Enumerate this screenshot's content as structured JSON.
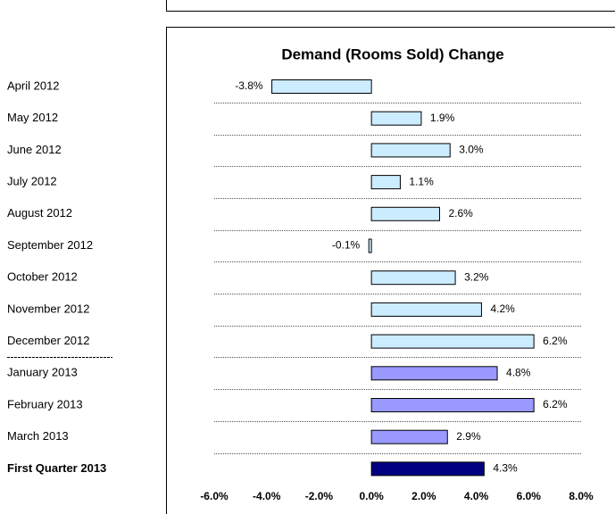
{
  "chart_data": {
    "type": "hbar",
    "title": "Demand (Rooms Sold) Change",
    "categories": [
      "April 2012",
      "May 2012",
      "June 2012",
      "July 2012",
      "August 2012",
      "September 2012",
      "October 2012",
      "November 2012",
      "December 2012",
      "January 2013",
      "February 2013",
      "March 2013",
      "First Quarter 2013"
    ],
    "values": [
      -3.8,
      1.9,
      3.0,
      1.1,
      2.6,
      -0.1,
      3.2,
      4.2,
      6.2,
      4.8,
      6.2,
      2.9,
      4.3
    ],
    "value_labels": [
      "-3.8%",
      "1.9%",
      "3.0%",
      "1.1%",
      "2.6%",
      "-0.1%",
      "3.2%",
      "4.2%",
      "6.2%",
      "4.8%",
      "6.2%",
      "2.9%",
      "4.3%"
    ],
    "colors": [
      "#ccecff",
      "#ccecff",
      "#ccecff",
      "#ccecff",
      "#ccecff",
      "#ccecff",
      "#ccecff",
      "#ccecff",
      "#ccecff",
      "#9999ff",
      "#9999ff",
      "#9999ff",
      "#000080"
    ],
    "xlim": [
      -6,
      8
    ],
    "xticks": [
      {
        "value": -6,
        "label": "-6.0%"
      },
      {
        "value": -4,
        "label": "-4.0%"
      },
      {
        "value": -2,
        "label": "-2.0%"
      },
      {
        "value": 0,
        "label": "0.0%"
      },
      {
        "value": 2,
        "label": "2.0%"
      },
      {
        "value": 4,
        "label": "4.0%"
      },
      {
        "value": 6,
        "label": "6.0%"
      },
      {
        "value": 8,
        "label": "8.0%"
      }
    ]
  }
}
